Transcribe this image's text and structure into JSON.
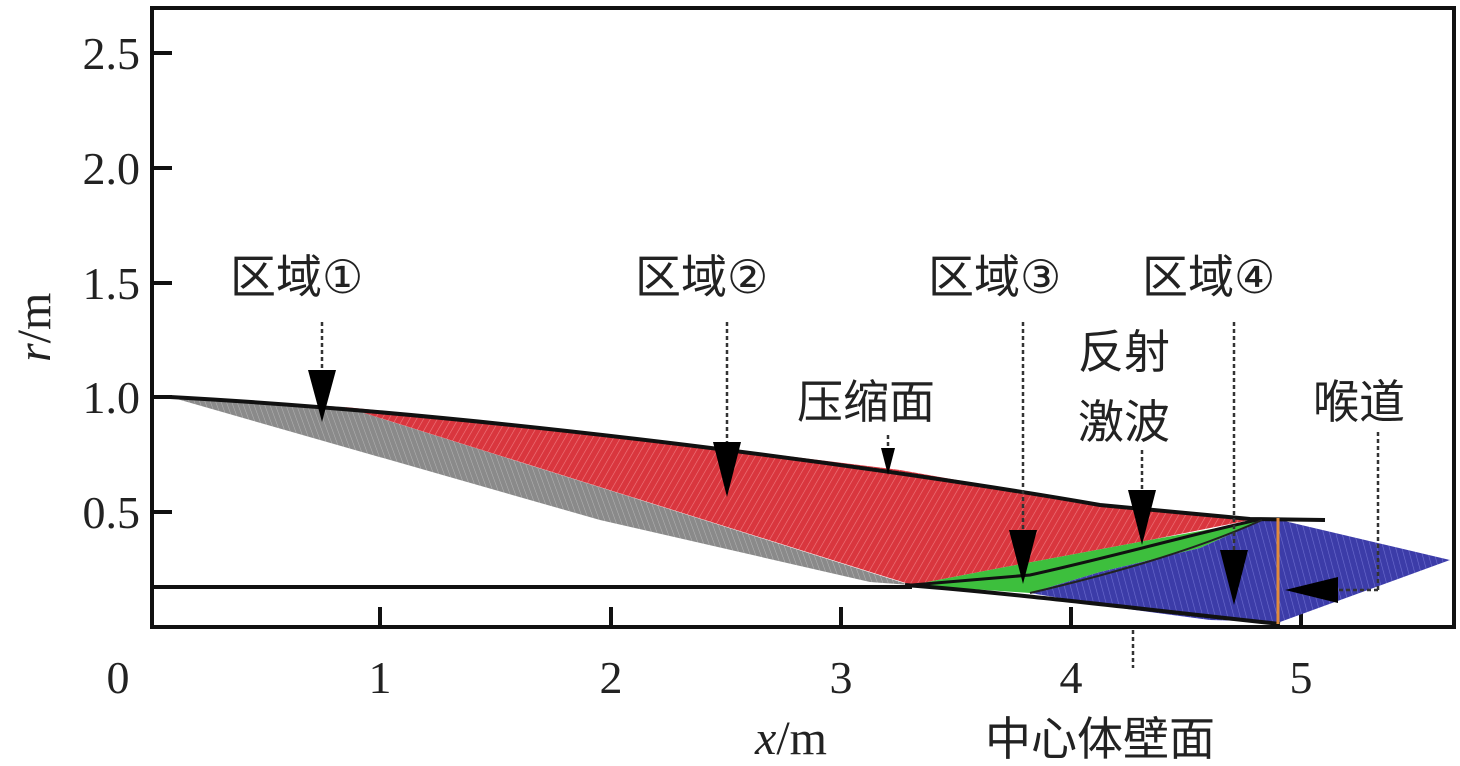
{
  "axes": {
    "x_ticks": [
      "0",
      "1",
      "2",
      "3",
      "4",
      "5"
    ],
    "y_ticks": [
      "0.5",
      "1.0",
      "1.5",
      "2.0",
      "2.5"
    ],
    "x_title_var": "x",
    "x_title_unit": "/m",
    "y_title_var": "r",
    "y_title_unit": "/m"
  },
  "labels": {
    "zone1": "区域①",
    "zone2": "区域②",
    "zone3": "区域③",
    "zone4": "区域④",
    "compression_surface": "压缩面",
    "reflected_shock_line1": "反射",
    "reflected_shock_line2": "激波",
    "throat": "喉道",
    "centerbody_wall": "中心体壁面"
  },
  "colors": {
    "zone1": "#8a8a8a",
    "zone2": "#d9363e",
    "zone3": "#3dbf3d",
    "zone4": "#3c3ca8",
    "throat_line": "#e08a3c"
  }
}
